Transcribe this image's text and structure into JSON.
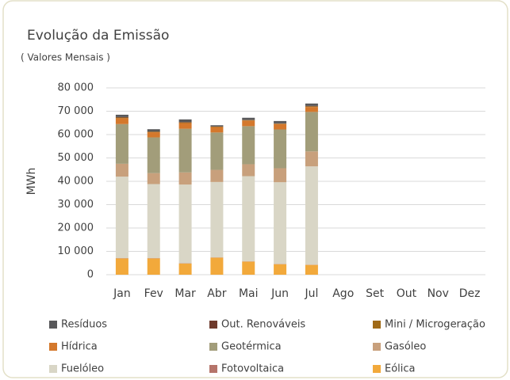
{
  "chart_data": {
    "type": "stacked_bar",
    "title": "Evolução da Emissão",
    "subtitle": "( Valores Mensais )",
    "y_label": "MWh",
    "categories": [
      "Jan",
      "Fev",
      "Mar",
      "Abr",
      "Mai",
      "Jun",
      "Jul",
      "Ago",
      "Set",
      "Out",
      "Nov",
      "Dez"
    ],
    "ylim": [
      0,
      80000
    ],
    "yticks": [
      {
        "value": 0,
        "label": "0"
      },
      {
        "value": 10000,
        "label": "10 000"
      },
      {
        "value": 20000,
        "label": "20 000"
      },
      {
        "value": 30000,
        "label": "30 000"
      },
      {
        "value": 40000,
        "label": "40 000"
      },
      {
        "value": 50000,
        "label": "50 000"
      },
      {
        "value": 60000,
        "label": "60 000"
      },
      {
        "value": 70000,
        "label": "70 000"
      },
      {
        "value": 80000,
        "label": "80 000"
      }
    ],
    "grid": true,
    "legend": "bottom",
    "series": [
      {
        "name": "Eólica",
        "color": "#f2a93b",
        "values": [
          7000,
          7000,
          4800,
          7300,
          5600,
          4500,
          4200,
          null,
          null,
          null,
          null,
          null
        ]
      },
      {
        "name": "Fotovoltaica",
        "color": "#b5746a",
        "values": [
          100,
          100,
          100,
          100,
          100,
          100,
          100,
          null,
          null,
          null,
          null,
          null
        ]
      },
      {
        "name": "Fuelóleo",
        "color": "#d9d6c6",
        "values": [
          34900,
          31700,
          33700,
          32300,
          36500,
          35000,
          42100,
          null,
          null,
          null,
          null,
          null
        ]
      },
      {
        "name": "Gasóleo",
        "color": "#c8a07c",
        "values": [
          5500,
          4700,
          5200,
          5200,
          5100,
          6000,
          6400,
          null,
          null,
          null,
          null,
          null
        ]
      },
      {
        "name": "Geotérmica",
        "color": "#a29d7a",
        "values": [
          17000,
          15300,
          18700,
          16000,
          16300,
          16600,
          16900,
          null,
          null,
          null,
          null,
          null
        ]
      },
      {
        "name": "Hídrica",
        "color": "#d4782c",
        "values": [
          2500,
          2200,
          2400,
          2300,
          2400,
          2300,
          2100,
          null,
          null,
          null,
          null,
          null
        ]
      },
      {
        "name": "Mini / Microgeração",
        "color": "#a06a17",
        "values": [
          300,
          200,
          300,
          200,
          200,
          200,
          300,
          null,
          null,
          null,
          null,
          null
        ]
      },
      {
        "name": "Out. Renováveis",
        "color": "#6e3a2c",
        "values": [
          200,
          100,
          200,
          100,
          100,
          100,
          200,
          null,
          null,
          null,
          null,
          null
        ]
      },
      {
        "name": "Resíduos",
        "color": "#58585a",
        "values": [
          1000,
          1000,
          1100,
          500,
          900,
          1000,
          1000,
          null,
          null,
          null,
          null,
          null
        ]
      }
    ]
  }
}
